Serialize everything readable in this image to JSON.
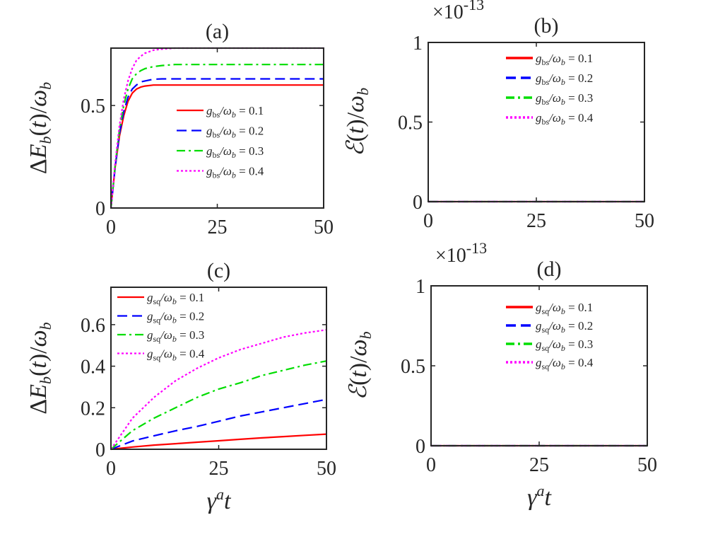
{
  "chart_data": [
    {
      "id": "a",
      "type": "line",
      "title": "(a)",
      "ylabel": "ΔE_b(t)/ω_b",
      "xlabel": "",
      "xlim": [
        0,
        50
      ],
      "ylim": [
        0,
        0.78
      ],
      "xticks": [
        {
          "v": 0,
          "label": "0"
        },
        {
          "v": 25,
          "label": "25"
        },
        {
          "v": 50,
          "label": "50"
        }
      ],
      "yticks": [
        {
          "v": 0,
          "label": "0"
        },
        {
          "v": 0.5,
          "label": "0.5"
        }
      ],
      "exponent": "",
      "legend_position": "center-right",
      "series": [
        {
          "name": "g_bs/ω_b = 0.1",
          "legend_label": "gbs/ωb = 0.1",
          "color": "#ff0000",
          "style": "solid",
          "x": [
            0,
            1,
            2,
            3,
            4,
            5,
            6,
            7,
            8,
            10,
            12,
            15,
            20,
            25,
            30,
            40,
            50
          ],
          "y": [
            0,
            0.2,
            0.35,
            0.45,
            0.52,
            0.56,
            0.58,
            0.59,
            0.595,
            0.6,
            0.6,
            0.6,
            0.6,
            0.6,
            0.6,
            0.6,
            0.6
          ]
        },
        {
          "name": "g_bs/ω_b = 0.2",
          "legend_label": "gbs/ωb = 0.2",
          "color": "#0000ff",
          "style": "dashed",
          "x": [
            0,
            1,
            2,
            3,
            4,
            5,
            6,
            7,
            8,
            10,
            12,
            15,
            20,
            25,
            30,
            40,
            50
          ],
          "y": [
            0,
            0.2,
            0.36,
            0.47,
            0.54,
            0.58,
            0.6,
            0.615,
            0.62,
            0.628,
            0.63,
            0.63,
            0.63,
            0.63,
            0.63,
            0.63,
            0.63
          ]
        },
        {
          "name": "g_bs/ω_b = 0.3",
          "legend_label": "gbs/ωb = 0.3",
          "color": "#00dd00",
          "style": "dashdot",
          "x": [
            0,
            1,
            2,
            3,
            4,
            5,
            6,
            7,
            8,
            10,
            12,
            15,
            20,
            25,
            30,
            40,
            50
          ],
          "y": [
            0,
            0.21,
            0.38,
            0.5,
            0.58,
            0.63,
            0.655,
            0.67,
            0.68,
            0.69,
            0.695,
            0.7,
            0.7,
            0.7,
            0.7,
            0.7,
            0.7
          ]
        },
        {
          "name": "g_bs/ω_b = 0.4",
          "legend_label": "gbs/ωb = 0.4",
          "color": "#ff00ff",
          "style": "dotted",
          "x": [
            0,
            1,
            2,
            3,
            4,
            5,
            6,
            7,
            8,
            10,
            12,
            15,
            20,
            25,
            30,
            40,
            50
          ],
          "y": [
            0,
            0.22,
            0.4,
            0.53,
            0.62,
            0.68,
            0.72,
            0.74,
            0.755,
            0.77,
            0.775,
            0.78,
            0.78,
            0.78,
            0.78,
            0.78,
            0.78
          ]
        }
      ]
    },
    {
      "id": "b",
      "type": "line",
      "title": "(b)",
      "ylabel": "ℰ(t)/ω_b",
      "xlabel": "",
      "xlim": [
        0,
        50
      ],
      "ylim": [
        0,
        1
      ],
      "xticks": [
        {
          "v": 0,
          "label": "0"
        },
        {
          "v": 25,
          "label": "25"
        },
        {
          "v": 50,
          "label": "50"
        }
      ],
      "yticks": [
        {
          "v": 0,
          "label": "0"
        },
        {
          "v": 0.5,
          "label": "0.5"
        },
        {
          "v": 1,
          "label": "1"
        }
      ],
      "exponent": "×10",
      "exponent_power": "-13",
      "legend_position": "top-right",
      "series": [
        {
          "name": "g_bs/ω_b = 0.1",
          "legend_label": "gbs/ωb = 0.1",
          "color": "#ff0000",
          "style": "solid",
          "x": [
            0,
            50
          ],
          "y": [
            0,
            0
          ]
        },
        {
          "name": "g_bs/ω_b = 0.2",
          "legend_label": "gbs/ωb = 0.2",
          "color": "#0000ff",
          "style": "dashed",
          "x": [
            0,
            50
          ],
          "y": [
            0,
            0
          ]
        },
        {
          "name": "g_bs/ω_b = 0.3",
          "legend_label": "gbs/ωb = 0.3",
          "color": "#00dd00",
          "style": "dashdot",
          "x": [
            0,
            50
          ],
          "y": [
            0,
            0
          ]
        },
        {
          "name": "g_bs/ω_b = 0.4",
          "legend_label": "gbs/ωb = 0.4",
          "color": "#ff00ff",
          "style": "dotted",
          "x": [
            0,
            50
          ],
          "y": [
            0,
            0
          ]
        }
      ]
    },
    {
      "id": "c",
      "type": "line",
      "title": "(c)",
      "ylabel": "ΔE_b(t)/ω_b",
      "xlabel": "γ^a t",
      "xlim": [
        0,
        50
      ],
      "ylim": [
        0,
        0.78
      ],
      "xticks": [
        {
          "v": 0,
          "label": "0"
        },
        {
          "v": 25,
          "label": "25"
        },
        {
          "v": 50,
          "label": "50"
        }
      ],
      "yticks": [
        {
          "v": 0,
          "label": "0"
        },
        {
          "v": 0.2,
          "label": "0.2"
        },
        {
          "v": 0.4,
          "label": "0.4"
        },
        {
          "v": 0.6,
          "label": "0.6"
        }
      ],
      "exponent": "",
      "legend_position": "top-left",
      "series": [
        {
          "name": "g_sq/ω_b = 0.1",
          "legend_label": "gsq/ωb = 0.1",
          "color": "#ff0000",
          "style": "solid",
          "x": [
            0,
            5,
            10,
            15,
            20,
            25,
            30,
            35,
            40,
            45,
            50
          ],
          "y": [
            0,
            0.011,
            0.02,
            0.027,
            0.034,
            0.041,
            0.048,
            0.055,
            0.061,
            0.067,
            0.073
          ]
        },
        {
          "name": "g_sq/ω_b = 0.2",
          "legend_label": "gsq/ωb = 0.2",
          "color": "#0000ff",
          "style": "dashed",
          "x": [
            0,
            5,
            10,
            15,
            20,
            25,
            30,
            35,
            40,
            45,
            50
          ],
          "y": [
            0,
            0.04,
            0.065,
            0.089,
            0.11,
            0.135,
            0.16,
            0.18,
            0.2,
            0.22,
            0.24
          ]
        },
        {
          "name": "g_sq/ω_b = 0.3",
          "legend_label": "gsq/ωb = 0.3",
          "color": "#00dd00",
          "style": "dashdot",
          "x": [
            0,
            5,
            10,
            15,
            20,
            25,
            30,
            35,
            40,
            45,
            50
          ],
          "y": [
            0,
            0.09,
            0.15,
            0.2,
            0.25,
            0.29,
            0.32,
            0.355,
            0.38,
            0.405,
            0.425
          ]
        },
        {
          "name": "g_sq/ω_b = 0.4",
          "legend_label": "gsq/ωb = 0.4",
          "color": "#ff00ff",
          "style": "dotted",
          "x": [
            0,
            5,
            10,
            15,
            20,
            25,
            30,
            35,
            40,
            45,
            50
          ],
          "y": [
            0,
            0.15,
            0.25,
            0.33,
            0.39,
            0.44,
            0.48,
            0.51,
            0.54,
            0.56,
            0.575
          ]
        }
      ]
    },
    {
      "id": "d",
      "type": "line",
      "title": "(d)",
      "ylabel": "ℰ(t)/ω_b",
      "xlabel": "γ^a t",
      "xlim": [
        0,
        50
      ],
      "ylim": [
        0,
        1
      ],
      "xticks": [
        {
          "v": 0,
          "label": "0"
        },
        {
          "v": 25,
          "label": "25"
        },
        {
          "v": 50,
          "label": "50"
        }
      ],
      "yticks": [
        {
          "v": 0,
          "label": "0"
        },
        {
          "v": 0.5,
          "label": "0.5"
        },
        {
          "v": 1,
          "label": "1"
        }
      ],
      "exponent": "×10",
      "exponent_power": "-13",
      "legend_position": "top-right",
      "series": [
        {
          "name": "g_sq/ω_b = 0.1",
          "legend_label": "gsq/ωb = 0.1",
          "color": "#ff0000",
          "style": "solid",
          "x": [
            0,
            50
          ],
          "y": [
            0,
            0
          ]
        },
        {
          "name": "g_sq/ω_b = 0.2",
          "legend_label": "gsq/ωb = 0.2",
          "color": "#0000ff",
          "style": "dashed",
          "x": [
            0,
            50
          ],
          "y": [
            0,
            0
          ]
        },
        {
          "name": "g_sq/ω_b = 0.3",
          "legend_label": "gsq/ωb = 0.3",
          "color": "#00dd00",
          "style": "dashdot",
          "x": [
            0,
            50
          ],
          "y": [
            0,
            0
          ]
        },
        {
          "name": "g_sq/ω_b = 0.4",
          "legend_label": "gsq/ωb = 0.4",
          "color": "#ff00ff",
          "style": "dotted",
          "x": [
            0,
            50
          ],
          "y": [
            0,
            0
          ]
        }
      ]
    }
  ]
}
